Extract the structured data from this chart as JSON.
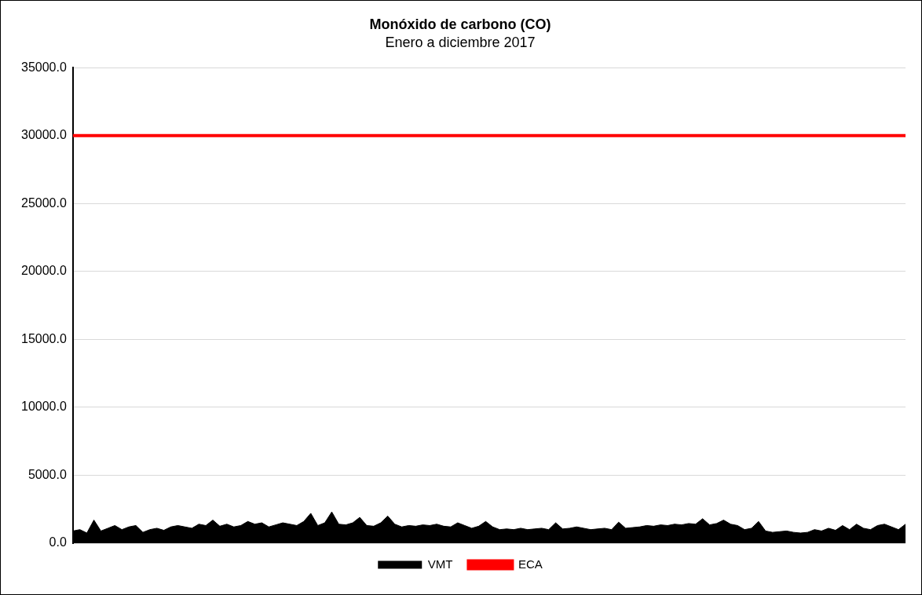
{
  "chart_data": {
    "type": "area",
    "title": "Monóxido de carbono (CO)",
    "subtitle": "Enero a diciembre 2017",
    "categories": [
      null,
      null,
      null,
      null,
      null,
      null,
      null,
      null,
      null,
      null,
      null,
      null,
      null,
      null,
      null,
      null,
      null,
      null,
      null,
      null,
      null,
      null,
      null,
      null,
      null,
      null,
      null,
      null,
      null,
      null,
      null,
      null,
      null,
      null,
      null,
      null,
      null,
      null,
      null,
      null,
      null,
      null,
      null,
      null,
      null,
      null,
      null,
      null,
      null,
      null,
      null,
      null,
      null,
      null,
      null,
      null,
      null,
      null,
      null,
      null,
      null,
      null,
      null,
      null,
      null,
      null,
      null,
      null,
      null,
      null,
      null,
      null,
      null,
      null,
      null,
      null,
      null,
      null,
      null,
      null,
      null,
      null,
      null,
      null,
      null,
      null,
      null,
      null,
      null,
      null,
      null,
      null,
      null,
      null,
      null,
      null,
      null,
      null,
      null,
      null,
      null,
      null,
      null,
      null,
      null,
      null,
      null,
      null,
      null,
      null,
      null,
      null,
      null,
      null,
      null,
      null,
      null,
      null,
      null,
      null
    ],
    "series": [
      {
        "name": "VMT",
        "color": "#000000",
        "values": [
          900,
          1000,
          750,
          1700,
          900,
          1100,
          1300,
          1000,
          1200,
          1300,
          800,
          1000,
          1100,
          950,
          1200,
          1300,
          1200,
          1100,
          1400,
          1300,
          1700,
          1250,
          1400,
          1200,
          1300,
          1600,
          1400,
          1500,
          1200,
          1350,
          1500,
          1400,
          1300,
          1600,
          2200,
          1300,
          1500,
          2300,
          1400,
          1350,
          1500,
          1900,
          1300,
          1250,
          1500,
          2000,
          1400,
          1200,
          1300,
          1250,
          1350,
          1300,
          1400,
          1250,
          1200,
          1500,
          1300,
          1100,
          1250,
          1600,
          1200,
          1000,
          1050,
          1000,
          1100,
          1000,
          1050,
          1100,
          1000,
          1500,
          1050,
          1100,
          1200,
          1100,
          1000,
          1050,
          1100,
          1000,
          1550,
          1100,
          1150,
          1200,
          1300,
          1250,
          1350,
          1300,
          1400,
          1350,
          1450,
          1400,
          1800,
          1350,
          1450,
          1700,
          1400,
          1300,
          1000,
          1100,
          1600,
          900,
          800,
          850,
          900,
          800,
          750,
          800,
          1000,
          900,
          1100,
          950,
          1300,
          1000,
          1400,
          1100,
          1000,
          1300,
          1400,
          1200,
          1000,
          1400
        ]
      },
      {
        "name": "ECA",
        "type": "line",
        "color": "#ff0000",
        "values": [
          30000,
          30000,
          30000,
          30000,
          30000,
          30000,
          30000,
          30000,
          30000,
          30000,
          30000,
          30000,
          30000,
          30000,
          30000,
          30000,
          30000,
          30000,
          30000,
          30000,
          30000,
          30000,
          30000,
          30000,
          30000,
          30000,
          30000,
          30000,
          30000,
          30000,
          30000,
          30000,
          30000,
          30000,
          30000,
          30000,
          30000,
          30000,
          30000,
          30000,
          30000,
          30000,
          30000,
          30000,
          30000,
          30000,
          30000,
          30000,
          30000,
          30000,
          30000,
          30000,
          30000,
          30000,
          30000,
          30000,
          30000,
          30000,
          30000,
          30000,
          30000,
          30000,
          30000,
          30000,
          30000,
          30000,
          30000,
          30000,
          30000,
          30000,
          30000,
          30000,
          30000,
          30000,
          30000,
          30000,
          30000,
          30000,
          30000,
          30000,
          30000,
          30000,
          30000,
          30000,
          30000,
          30000,
          30000,
          30000,
          30000,
          30000,
          30000,
          30000,
          30000,
          30000,
          30000,
          30000,
          30000,
          30000,
          30000,
          30000,
          30000,
          30000,
          30000,
          30000,
          30000,
          30000,
          30000,
          30000,
          30000,
          30000,
          30000,
          30000,
          30000,
          30000,
          30000,
          30000,
          30000,
          30000,
          30000,
          30000
        ]
      }
    ],
    "ylim": [
      0,
      35000
    ],
    "yticks": [
      {
        "value": 0,
        "label": "0.0"
      },
      {
        "value": 5000,
        "label": "5000.0"
      },
      {
        "value": 10000,
        "label": "10000.0"
      },
      {
        "value": 15000,
        "label": "15000.0"
      },
      {
        "value": 20000,
        "label": "20000.0"
      },
      {
        "value": 25000,
        "label": "25000.0"
      },
      {
        "value": 30000,
        "label": "30000.0"
      },
      {
        "value": 35000,
        "label": "35000.0"
      }
    ],
    "grid": "y",
    "legend": "bottom",
    "tick_labels": "y",
    "marker": "none"
  }
}
